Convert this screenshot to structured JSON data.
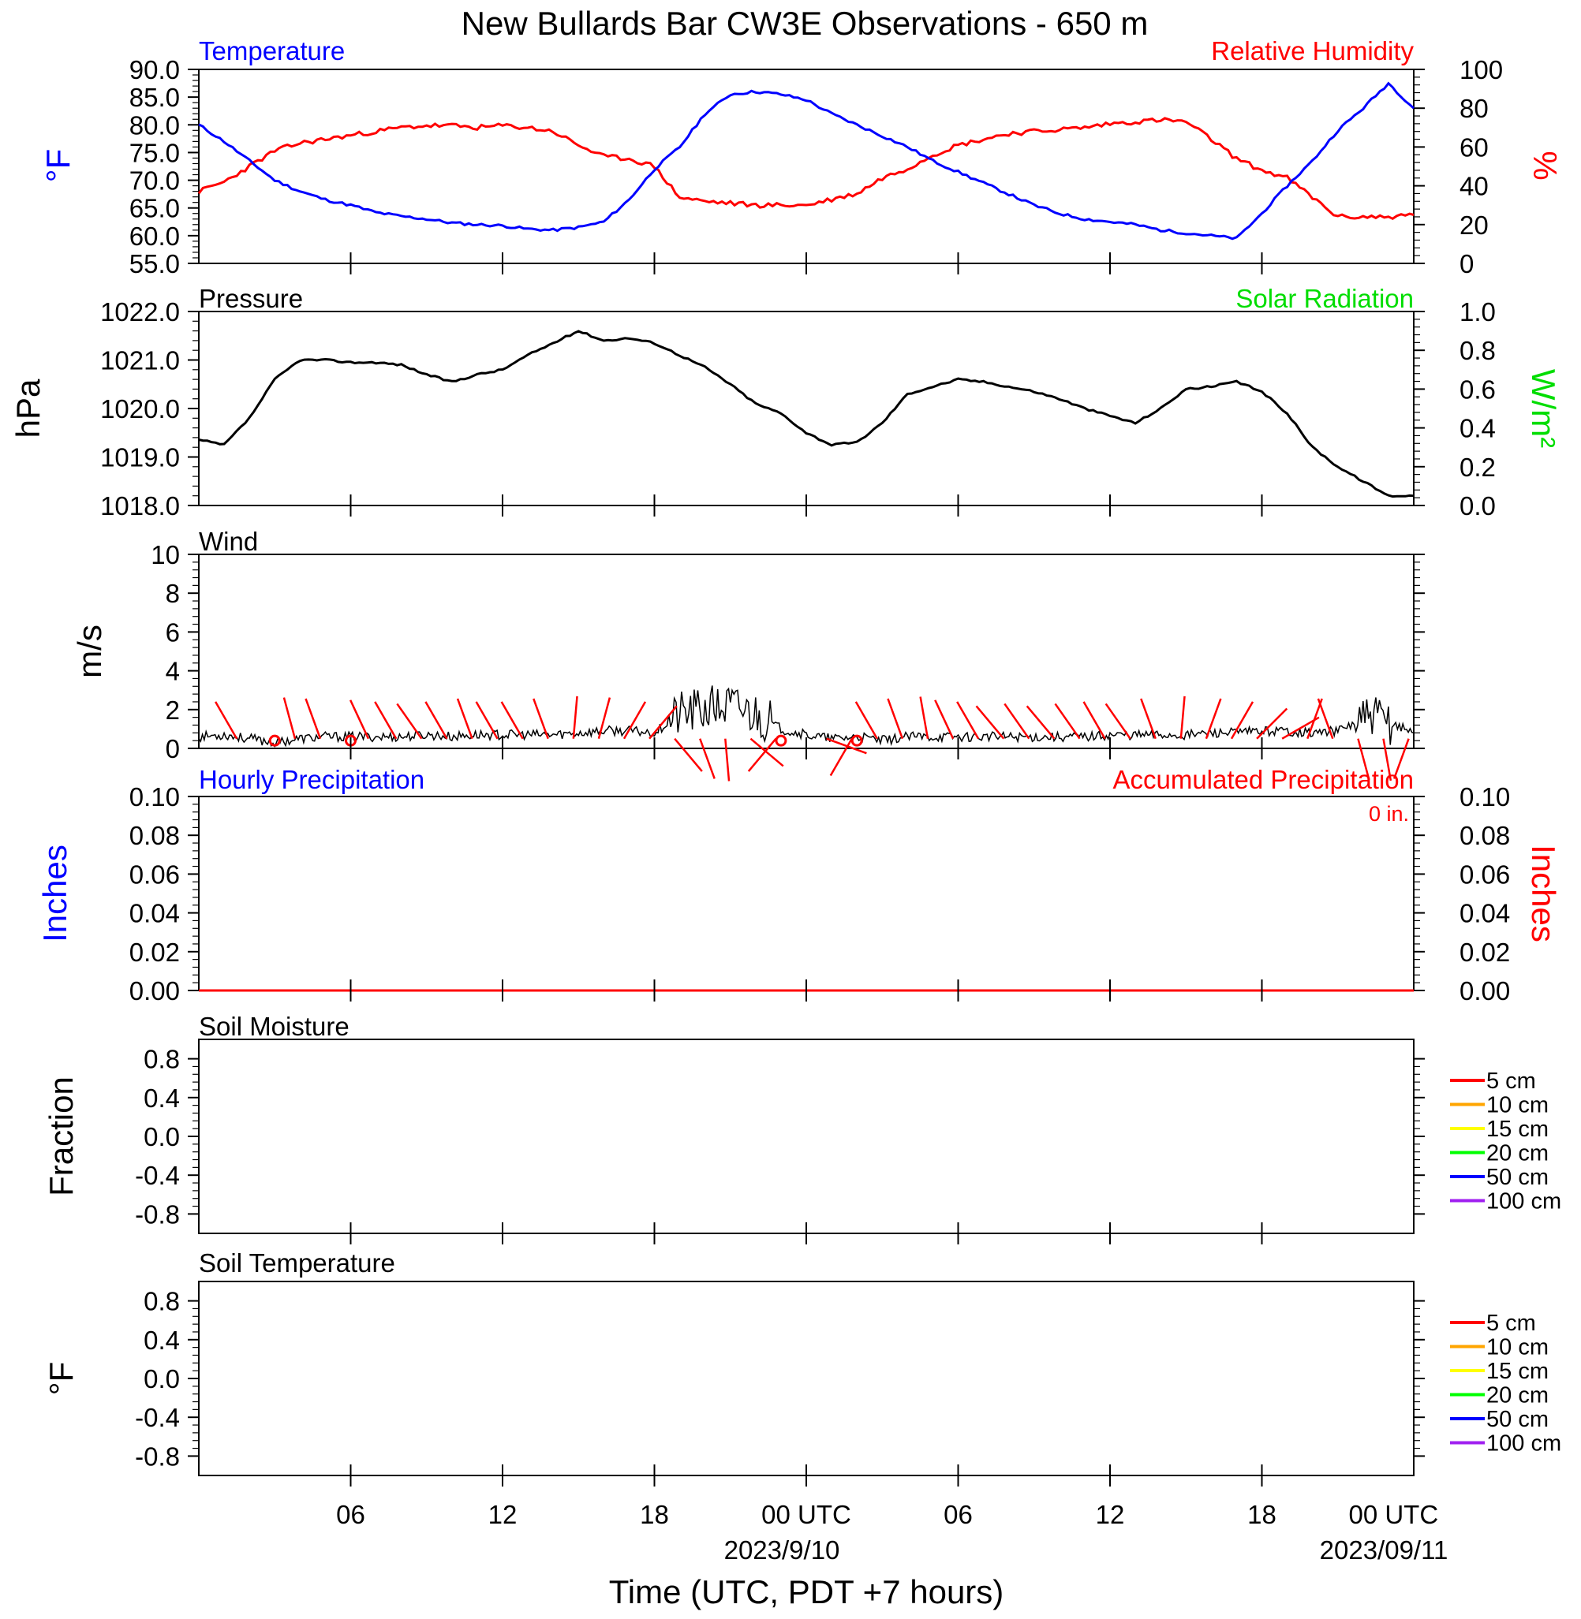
{
  "title": "New Bullards Bar CW3E Observations - 650 m",
  "xaxis": {
    "tick_labels": [
      "06",
      "12",
      "18",
      "00 UTC",
      "06",
      "12",
      "18",
      "00 UTC"
    ],
    "date_labels": [
      "2023/9/10",
      "2023/09/11"
    ],
    "xlabel": "Time (UTC, PDT +7 hours)"
  },
  "legend_depths": [
    "5 cm",
    "10 cm",
    "15 cm",
    "20 cm",
    "50 cm",
    "100 cm"
  ],
  "colors": {
    "temperature": "#0000ff",
    "humidity": "#ff0000",
    "solar": "#00dd00",
    "pressure": "#000000",
    "wind": "#000000",
    "wind_barb": "#ff0000",
    "depth_colors": [
      "#ff0000",
      "#ffa500",
      "#ffff00",
      "#00ff00",
      "#0000ff",
      "#a020f0"
    ]
  },
  "chart_data": [
    {
      "type": "line",
      "panel": "temperature-humidity",
      "left_title": "Temperature",
      "right_title": "Relative Humidity",
      "ylabel_left": "°F",
      "ylabel_right": "%",
      "ylim_left": [
        55,
        90
      ],
      "ylim_right": [
        0,
        100
      ],
      "yticks_left": [
        "90.0",
        "85.0",
        "80.0",
        "75.0",
        "70.0",
        "65.0",
        "60.0",
        "55.0"
      ],
      "yticks_right": [
        "100",
        "80",
        "60",
        "40",
        "20",
        "0"
      ],
      "x_hours": [
        0,
        1,
        2,
        3,
        4,
        5,
        6,
        7,
        8,
        9,
        10,
        11,
        12,
        13,
        14,
        15,
        16,
        17,
        18,
        19,
        20,
        21,
        22,
        23,
        24,
        25,
        26,
        27,
        28,
        29,
        30,
        31,
        32,
        33,
        34,
        35,
        36,
        37,
        38,
        39,
        40,
        41,
        42,
        43,
        44,
        45,
        46,
        47,
        48
      ],
      "series": [
        {
          "name": "Temperature",
          "axis": "left",
          "values": [
            80.0,
            77.0,
            73.5,
            70.0,
            68.0,
            66.5,
            65.5,
            64.2,
            63.5,
            63.0,
            62.3,
            62.0,
            61.8,
            61.2,
            61.0,
            61.5,
            62.5,
            66.5,
            72.0,
            76.0,
            82.0,
            85.5,
            86.0,
            85.5,
            84.5,
            82.0,
            80.0,
            78.0,
            76.0,
            73.5,
            71.5,
            69.5,
            67.5,
            65.5,
            64.0,
            63.0,
            62.5,
            62.0,
            61.0,
            60.5,
            60.0,
            59.5,
            64.0,
            69.0,
            73.5,
            79.0,
            83.0,
            87.5,
            83.0
          ]
        },
        {
          "name": "Relative Humidity",
          "axis": "right",
          "values": [
            37,
            42,
            50,
            58,
            62,
            64,
            66,
            68,
            70,
            71,
            71,
            70,
            71,
            70,
            68,
            61,
            55,
            54,
            50,
            34,
            32,
            31,
            30,
            30,
            30,
            33,
            36,
            44,
            49,
            56,
            61,
            64,
            67,
            68,
            69,
            70,
            72,
            73,
            74,
            73,
            64,
            54,
            48,
            44,
            34,
            24,
            24,
            24,
            25
          ]
        }
      ]
    },
    {
      "type": "line",
      "panel": "pressure-solar",
      "left_title": "Pressure",
      "right_title": "Solar Radiation",
      "ylabel_left": "hPa",
      "ylabel_right": "W/m²",
      "ylim_left": [
        1018,
        1022
      ],
      "ylim_right": [
        0,
        1
      ],
      "yticks_left": [
        "1022.0",
        "1021.0",
        "1020.0",
        "1019.0",
        "1018.0"
      ],
      "yticks_right": [
        "1.0",
        "0.8",
        "0.6",
        "0.4",
        "0.2",
        "0.0"
      ],
      "x_hours": [
        0,
        1,
        2,
        3,
        4,
        5,
        6,
        7,
        8,
        9,
        10,
        11,
        12,
        13,
        14,
        15,
        16,
        17,
        18,
        19,
        20,
        21,
        22,
        23,
        24,
        25,
        26,
        27,
        28,
        29,
        30,
        31,
        32,
        33,
        34,
        35,
        36,
        37,
        38,
        39,
        40,
        41,
        42,
        43,
        44,
        45,
        46,
        47,
        48
      ],
      "series": [
        {
          "name": "Pressure",
          "axis": "left",
          "values": [
            1019.35,
            1019.25,
            1019.8,
            1020.6,
            1021.0,
            1021.0,
            1020.95,
            1020.95,
            1020.9,
            1020.7,
            1020.55,
            1020.7,
            1020.8,
            1021.1,
            1021.35,
            1021.6,
            1021.4,
            1021.45,
            1021.35,
            1021.1,
            1020.85,
            1020.5,
            1020.1,
            1019.9,
            1019.5,
            1019.25,
            1019.3,
            1019.7,
            1020.3,
            1020.45,
            1020.6,
            1020.55,
            1020.45,
            1020.35,
            1020.2,
            1020.0,
            1019.85,
            1019.7,
            1020.0,
            1020.4,
            1020.45,
            1020.55,
            1020.35,
            1019.9,
            1019.2,
            1018.8,
            1018.5,
            1018.2,
            1018.2
          ]
        }
      ]
    },
    {
      "type": "line",
      "panel": "wind",
      "left_title": "Wind",
      "ylabel_left": "m/s",
      "ylim_left": [
        0,
        10
      ],
      "yticks_left": [
        "10",
        "8",
        "6",
        "4",
        "2",
        "0"
      ],
      "x_hours": [
        0,
        1,
        2,
        3,
        4,
        5,
        6,
        7,
        8,
        9,
        10,
        11,
        12,
        13,
        14,
        15,
        16,
        17,
        18,
        19,
        20,
        21,
        22,
        23,
        24,
        25,
        26,
        27,
        28,
        29,
        30,
        31,
        32,
        33,
        34,
        35,
        36,
        37,
        38,
        39,
        40,
        41,
        42,
        43,
        44,
        45,
        46,
        47,
        48
      ],
      "series": [
        {
          "name": "Wind",
          "axis": "left",
          "values": [
            0.6,
            0.7,
            0.5,
            0.3,
            0.5,
            0.6,
            0.6,
            0.6,
            0.6,
            0.7,
            0.6,
            0.7,
            0.7,
            0.7,
            0.7,
            0.8,
            0.9,
            0.9,
            0.8,
            1.8,
            2.0,
            2.2,
            1.8,
            1.0,
            0.7,
            0.5,
            0.6,
            0.4,
            0.6,
            0.6,
            0.6,
            0.6,
            0.6,
            0.6,
            0.6,
            0.6,
            0.7,
            0.7,
            0.7,
            0.7,
            0.8,
            0.8,
            0.9,
            0.9,
            0.8,
            0.9,
            1.5,
            1.4,
            0.8
          ]
        }
      ],
      "calm_hours": [
        3,
        6,
        23,
        26
      ],
      "barb_hours": [
        1.5,
        3.8,
        4.8,
        6.7,
        7.8,
        8.8,
        9.8,
        10.8,
        11.8,
        12.8,
        13.8,
        14.8,
        15.8,
        16.8,
        17.8,
        18.8,
        19.8,
        20.8,
        21.8,
        22.8,
        24.8,
        25.8,
        26.8,
        27.8,
        28.8,
        29.8,
        30.8,
        31.8,
        32.8,
        33.8,
        34.8,
        35.8,
        36.8,
        37.8,
        38.8,
        39.8,
        40.8,
        41.8,
        42.8,
        43.8,
        44.8,
        45.8,
        46.8,
        47.8
      ],
      "barb_directions_deg": [
        330,
        345,
        340,
        335,
        330,
        325,
        330,
        340,
        330,
        330,
        340,
        5,
        15,
        30,
        40,
        140,
        160,
        175,
        130,
        220,
        110,
        210,
        330,
        340,
        350,
        335,
        330,
        320,
        325,
        320,
        325,
        330,
        325,
        340,
        5,
        20,
        30,
        45,
        60,
        20,
        340,
        165,
        170,
        200
      ]
    },
    {
      "type": "bar",
      "panel": "precipitation",
      "left_title": "Hourly Precipitation",
      "right_title": "Accumulated Precipitation",
      "accumulated_total": "0 in.",
      "ylabel_left": "Inches",
      "ylabel_right": "Inches",
      "ylim_left": [
        0,
        0.1
      ],
      "ylim_right": [
        0,
        0.1
      ],
      "yticks_left": [
        "0.10",
        "0.08",
        "0.06",
        "0.04",
        "0.02",
        "0.00"
      ],
      "yticks_right": [
        "0.10",
        "0.08",
        "0.06",
        "0.04",
        "0.02",
        "0.00"
      ],
      "series": [
        {
          "name": "Hourly Precipitation",
          "axis": "left",
          "values": []
        },
        {
          "name": "Accumulated Precipitation",
          "axis": "right",
          "values": [
            0,
            0
          ]
        }
      ]
    },
    {
      "type": "line",
      "panel": "soil-moisture",
      "left_title": "Soil Moisture",
      "ylabel_left": "Fraction",
      "ylim_left": [
        -1,
        1
      ],
      "yticks_left": [
        "0.8",
        "0.4",
        "0.0",
        "-0.4",
        "-0.8"
      ],
      "series": []
    },
    {
      "type": "line",
      "panel": "soil-temperature",
      "left_title": "Soil Temperature",
      "ylabel_left": "°F",
      "ylim_left": [
        -1,
        1
      ],
      "yticks_left": [
        "0.8",
        "0.4",
        "0.0",
        "-0.4",
        "-0.8"
      ],
      "series": []
    }
  ]
}
